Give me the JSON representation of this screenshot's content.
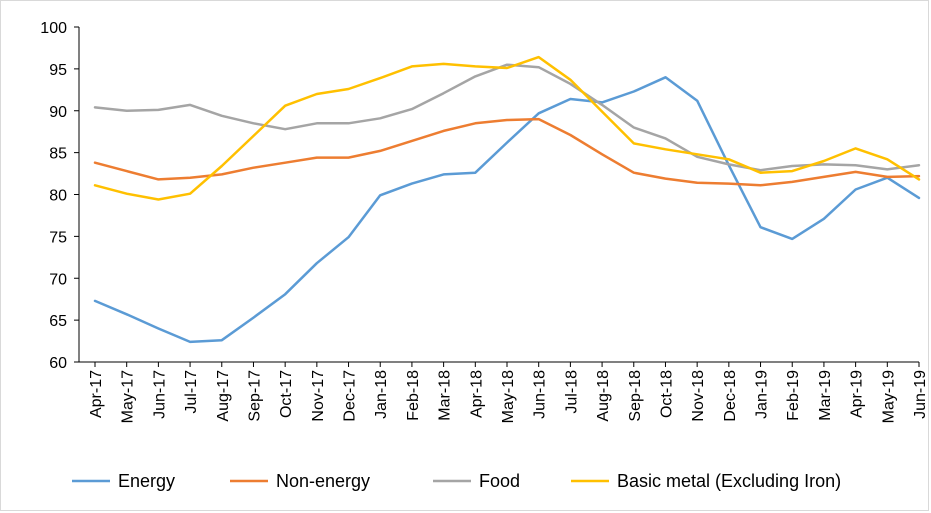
{
  "chart_data": {
    "type": "line",
    "categories": [
      "Apr-17",
      "May-17",
      "Jun-17",
      "Jul-17",
      "Aug-17",
      "Sep-17",
      "Oct-17",
      "Nov-17",
      "Dec-17",
      "Jan-18",
      "Feb-18",
      "Mar-18",
      "Apr-18",
      "May-18",
      "Jun-18",
      "Jul-18",
      "Aug-18",
      "Sep-18",
      "Oct-18",
      "Nov-18",
      "Dec-18",
      "Jan-19",
      "Feb-19",
      "Mar-19",
      "Apr-19",
      "May-19",
      "Jun-19"
    ],
    "ylim": [
      60,
      100
    ],
    "yticks": [
      60,
      65,
      70,
      75,
      80,
      85,
      90,
      95,
      100
    ],
    "grid": false,
    "legend_position": "bottom",
    "series": [
      {
        "name": "Energy",
        "color": "#5b9bd5",
        "values": [
          67.3,
          65.7,
          64.0,
          62.4,
          62.6,
          65.3,
          68.1,
          71.8,
          74.9,
          79.9,
          81.3,
          82.4,
          82.6,
          86.2,
          89.7,
          91.4,
          91.0,
          92.3,
          94.0,
          91.2,
          83.5,
          76.1,
          74.7,
          77.1,
          80.6,
          82.0,
          79.6
        ]
      },
      {
        "name": "Non-energy",
        "color": "#ed7d31",
        "values": [
          83.8,
          82.8,
          81.8,
          82.0,
          82.4,
          83.2,
          83.8,
          84.4,
          84.4,
          85.2,
          86.4,
          87.6,
          88.5,
          88.9,
          89.0,
          87.1,
          84.8,
          82.6,
          81.9,
          81.4,
          81.3,
          81.1,
          81.5,
          82.1,
          82.7,
          82.1,
          82.2
        ]
      },
      {
        "name": "Food",
        "color": "#a5a5a5",
        "values": [
          90.4,
          90.0,
          90.1,
          90.7,
          89.4,
          88.5,
          87.8,
          88.5,
          88.5,
          89.1,
          90.2,
          92.1,
          94.1,
          95.5,
          95.2,
          93.2,
          90.7,
          88.0,
          86.7,
          84.5,
          83.6,
          82.9,
          83.4,
          83.6,
          83.5,
          83.0,
          83.5
        ]
      },
      {
        "name": "Basic metal (Excluding Iron)",
        "color": "#ffc000",
        "values": [
          81.1,
          80.1,
          79.4,
          80.1,
          83.4,
          87.0,
          90.6,
          92.0,
          92.6,
          93.9,
          95.3,
          95.6,
          95.3,
          95.1,
          96.4,
          93.7,
          89.9,
          86.1,
          85.4,
          84.8,
          84.2,
          82.6,
          82.8,
          84.0,
          85.5,
          84.2,
          81.8
        ]
      }
    ]
  }
}
